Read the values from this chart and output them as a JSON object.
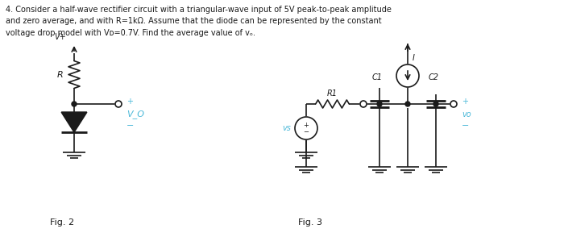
{
  "background_color": "#ffffff",
  "fig2_label": "Fig. 2",
  "fig3_label": "Fig. 3",
  "label_R": "R",
  "label_Vplus": "V+",
  "label_Vo_fig2": "V_O",
  "label_plus": "+",
  "label_minus": "−",
  "label_R1": "R1",
  "label_C1": "C1",
  "label_C2": "C2",
  "label_I": "I",
  "label_vs": "vs",
  "label_vo": "vo",
  "cyan": "#4ab8d8",
  "black": "#1a1a1a"
}
